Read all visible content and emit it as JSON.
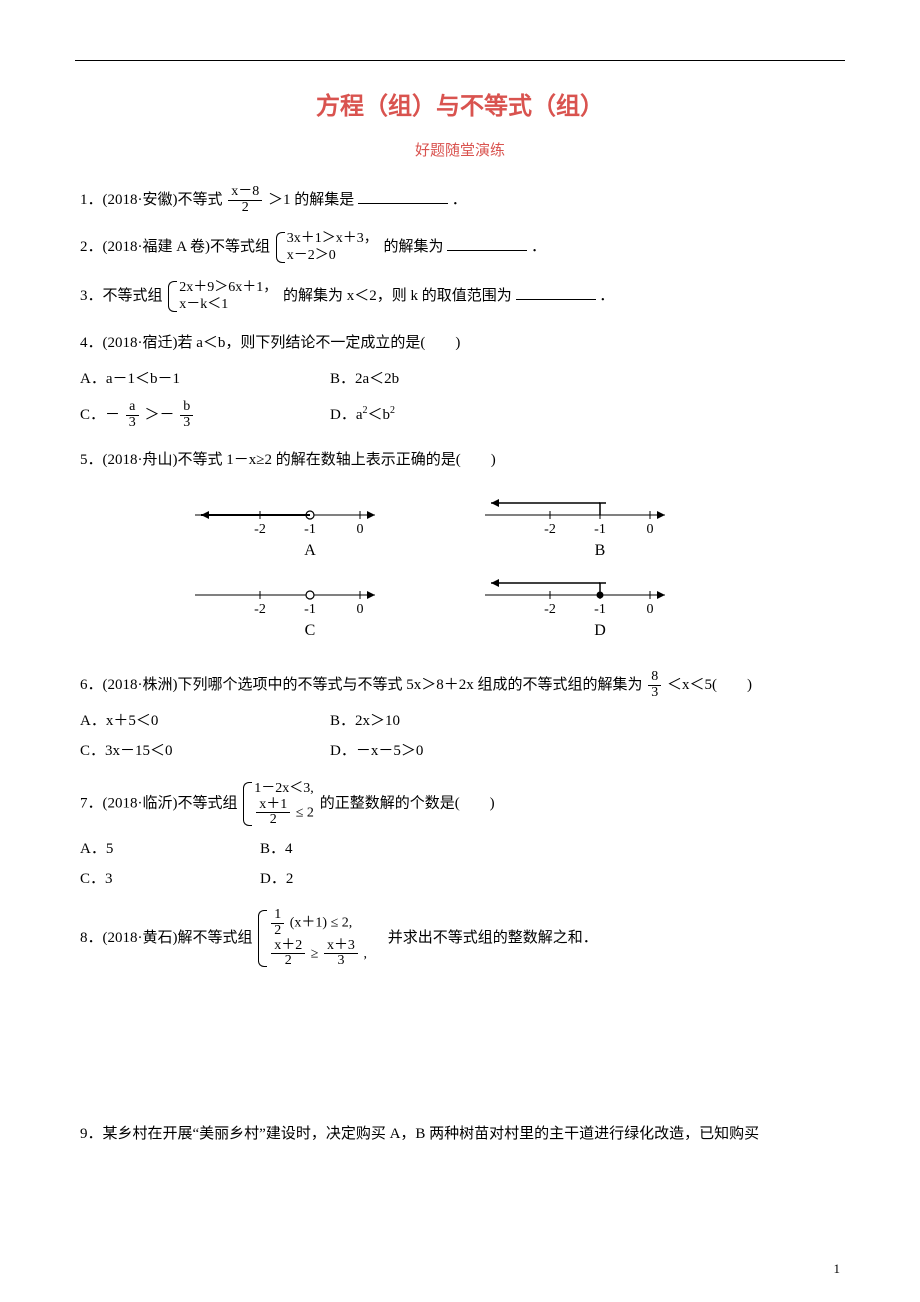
{
  "title": "方程（组）与不等式（组）",
  "subtitle": "好题随堂演练",
  "q1": {
    "prefix": "1．(2018·安徽)不等式",
    "frac_num": "x－8",
    "frac_den": "2",
    "suffix": "＞1 的解集是",
    "end": "．"
  },
  "q2": {
    "prefix": "2．(2018·福建 A 卷)不等式组",
    "row1": "3x＋1＞x＋3，",
    "row2": "x－2＞0",
    "suffix": " 的解集为",
    "end": "．"
  },
  "q3": {
    "prefix": "3．不等式组",
    "row1": "2x＋9＞6x＋1，",
    "row2": "x－k＜1",
    "suffix": " 的解集为 x＜2，则 k 的取值范围为",
    "end": "．"
  },
  "q4": {
    "stem": "4．(2018·宿迁)若 a＜b，则下列结论不一定成立的是(　　)",
    "A": "A．a－1＜b－1",
    "B": "B．2a＜2b",
    "C_pre": "C．－",
    "C_fa_num": "a",
    "C_fa_den": "3",
    "C_mid": "＞－",
    "C_fb_num": "b",
    "C_fb_den": "3",
    "D": "D．a",
    "D2": "＜b",
    "sup": "2"
  },
  "q5": {
    "stem": "5．(2018·舟山)不等式 1－x≥2 的解在数轴上表示正确的是(　　)",
    "ticks": [
      "-2",
      "-1",
      "0"
    ],
    "labels": [
      "A",
      "B",
      "C",
      "D"
    ]
  },
  "q6": {
    "prefix": "6．(2018·株洲)下列哪个选项中的不等式与不等式 5x＞8＋2x 组成的不等式组的解集为",
    "fnum": "8",
    "fden": "3",
    "suffix": "＜x＜5(　　)",
    "A": "A．x＋5＜0",
    "B": "B．2x＞10",
    "C": "C．3x－15＜0",
    "D": "D．－x－5＞0"
  },
  "q7": {
    "prefix": "7．(2018·临沂)不等式组",
    "row1": "1－2x＜3,",
    "r2_num": "x＋1",
    "r2_den": "2",
    "r2_suf": " ≤ 2",
    "suffix": " 的正整数解的个数是(　　)",
    "A": "A．5",
    "B": "B．4",
    "C": "C．3",
    "D": "D．2"
  },
  "q8": {
    "prefix": "8．(2018·黄石)解不等式组",
    "r1_num": "1",
    "r1_den": "2",
    "r1_mid": " (x＋1) ≤ 2,",
    "r2a_num": "x＋2",
    "r2a_den": "2",
    "r2_mid": " ≥ ",
    "r2b_num": "x＋3",
    "r2b_den": "3",
    "r2_end": ",",
    "suffix": "　并求出不等式组的整数解之和．"
  },
  "q9": {
    "text": "9．某乡村在开展“美丽乡村”建设时，决定购买 A，B 两种树苗对村里的主干道进行绿化改造，已知购买"
  },
  "diagram": {
    "tick_color": "#000000",
    "arrow_color": "#000000",
    "circle_open_fill": "#ffffff",
    "font_size": 14,
    "A": {
      "filled": false,
      "bracket": false,
      "ray_left": false,
      "at": -1
    },
    "B": {
      "filled": false,
      "bracket": true,
      "ray_left": true,
      "at": -1
    },
    "C": {
      "filled": false,
      "bracket": false,
      "ray_left": false,
      "at": -1,
      "open_only": true
    },
    "D": {
      "filled": true,
      "bracket": true,
      "ray_left": true,
      "at": -1
    }
  },
  "page_number": "1"
}
